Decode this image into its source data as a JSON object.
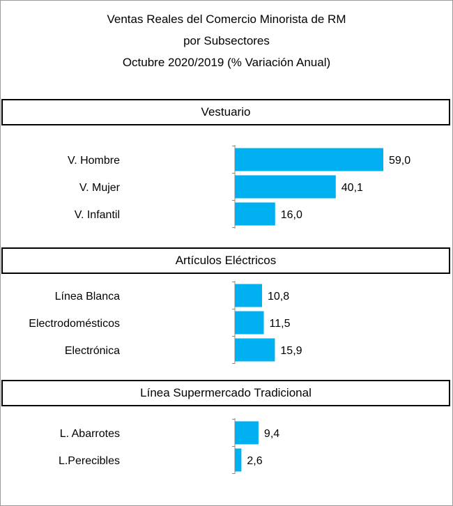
{
  "title": {
    "line1": "Ventas Reales del Comercio Minorista de RM",
    "line2": "por Subsectores",
    "line3": "Octubre 2020/2019 (% Variación Anual)"
  },
  "colors": {
    "bar": "#00B0F0",
    "axis": "#8c8c8c"
  },
  "chart_data": {
    "type": "bar",
    "orientation": "horizontal",
    "title": "Ventas Reales del Comercio Minorista de RM por Subsectores Octubre 2020/2019 (% Variación Anual)",
    "grid": false,
    "groups": [
      {
        "name": "Vestuario",
        "categories": [
          "V. Hombre",
          "V. Mujer",
          "V. Infantil"
        ],
        "values": [
          59.0,
          40.1,
          16.0
        ],
        "labels": [
          "59,0",
          "40,1",
          "16,0"
        ]
      },
      {
        "name": "Artículos Eléctricos",
        "categories": [
          "Línea Blanca",
          "Electrodomésticos",
          "Electrónica"
        ],
        "values": [
          10.8,
          11.5,
          15.9
        ],
        "labels": [
          "10,8",
          "11,5",
          "15,9"
        ]
      },
      {
        "name": "Línea Supermercado Tradicional",
        "categories": [
          "L. Abarrotes",
          "L.Perecibles"
        ],
        "values": [
          9.4,
          2.6
        ],
        "labels": [
          "9,4",
          "2,6"
        ]
      }
    ]
  }
}
